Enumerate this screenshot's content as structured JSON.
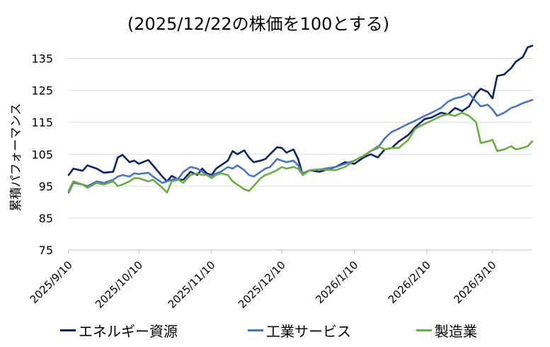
{
  "chart_data": {
    "type": "line",
    "title": "(2025/12/22の株価を100とする)",
    "ylabel": "累積パフォーマンス",
    "xlabel": "",
    "ylim": [
      75,
      140
    ],
    "yticks": [
      75,
      85,
      95,
      105,
      115,
      125,
      135
    ],
    "xticks": [
      "2025/9/10",
      "2025/10/10",
      "2025/11/10",
      "2025/12/10",
      "2026/1/10",
      "2026/2/10",
      "2026/3/10"
    ],
    "grid": "horizontal",
    "legend_position": "bottom",
    "series": [
      {
        "name": "エネルギー資源",
        "color": "#0d2463",
        "points": [
          [
            "2025-09-10",
            98.5
          ],
          [
            "2025-09-12",
            100.5
          ],
          [
            "2025-09-16",
            99.8
          ],
          [
            "2025-09-18",
            101.5
          ],
          [
            "2025-09-22",
            100.5
          ],
          [
            "2025-09-25",
            99.2
          ],
          [
            "2025-09-29",
            99.5
          ],
          [
            "2025-10-01",
            104.0
          ],
          [
            "2025-10-03",
            104.8
          ],
          [
            "2025-10-06",
            102.5
          ],
          [
            "2025-10-08",
            103.0
          ],
          [
            "2025-10-10",
            102.0
          ],
          [
            "2025-10-14",
            103.2
          ],
          [
            "2025-10-16",
            101.5
          ],
          [
            "2025-10-20",
            98.0
          ],
          [
            "2025-10-22",
            96.5
          ],
          [
            "2025-10-24",
            98.2
          ],
          [
            "2025-10-27",
            97.0
          ],
          [
            "2025-10-29",
            97.0
          ],
          [
            "2025-11-01",
            99.5
          ],
          [
            "2025-11-04",
            98.5
          ],
          [
            "2025-11-06",
            100.5
          ],
          [
            "2025-11-08",
            99.0
          ],
          [
            "2025-11-10",
            98.5
          ],
          [
            "2025-11-12",
            100.5
          ],
          [
            "2025-11-14",
            101.5
          ],
          [
            "2025-11-17",
            103.0
          ],
          [
            "2025-11-19",
            106.0
          ],
          [
            "2025-11-21",
            105.0
          ],
          [
            "2025-11-24",
            106.2
          ],
          [
            "2025-11-26",
            104.0
          ],
          [
            "2025-11-28",
            102.5
          ],
          [
            "2025-12-01",
            103.0
          ],
          [
            "2025-12-03",
            103.5
          ],
          [
            "2025-12-05",
            105.0
          ],
          [
            "2025-12-08",
            107.2
          ],
          [
            "2025-12-10",
            107.0
          ],
          [
            "2025-12-12",
            105.5
          ],
          [
            "2025-12-15",
            106.5
          ],
          [
            "2025-12-17",
            103.5
          ],
          [
            "2025-12-19",
            98.5
          ],
          [
            "2025-12-22",
            100.0
          ],
          [
            "2025-12-26",
            99.5
          ],
          [
            "2026-01-02",
            101.0
          ],
          [
            "2026-01-06",
            102.5
          ],
          [
            "2026-01-10",
            102.0
          ],
          [
            "2026-01-14",
            104.0
          ],
          [
            "2026-01-17",
            105.0
          ],
          [
            "2026-01-20",
            104.0
          ],
          [
            "2026-01-23",
            106.5
          ],
          [
            "2026-01-26",
            107.0
          ],
          [
            "2026-01-29",
            109.0
          ],
          [
            "2026-02-02",
            111.0
          ],
          [
            "2026-02-05",
            113.5
          ],
          [
            "2026-02-09",
            116.0
          ],
          [
            "2026-02-12",
            116.5
          ],
          [
            "2026-02-16",
            118.0
          ],
          [
            "2026-02-19",
            117.5
          ],
          [
            "2026-02-22",
            119.5
          ],
          [
            "2026-02-25",
            118.5
          ],
          [
            "2026-02-28",
            120.0
          ],
          [
            "2026-03-03",
            124.0
          ],
          [
            "2026-03-05",
            125.5
          ],
          [
            "2026-03-08",
            124.5
          ],
          [
            "2026-03-10",
            122.5
          ],
          [
            "2026-03-12",
            129.5
          ],
          [
            "2026-03-15",
            130.0
          ],
          [
            "2026-03-18",
            132.0
          ],
          [
            "2026-03-20",
            134.0
          ],
          [
            "2026-03-23",
            135.5
          ],
          [
            "2026-03-25",
            138.5
          ],
          [
            "2026-03-27",
            139.0
          ]
        ]
      },
      {
        "name": "工業サービス",
        "color": "#4a74c4",
        "points": [
          [
            "2025-09-10",
            93.0
          ],
          [
            "2025-09-12",
            96.0
          ],
          [
            "2025-09-16",
            95.5
          ],
          [
            "2025-09-18",
            95.0
          ],
          [
            "2025-09-22",
            96.5
          ],
          [
            "2025-09-25",
            96.0
          ],
          [
            "2025-09-29",
            97.0
          ],
          [
            "2025-10-01",
            98.0
          ],
          [
            "2025-10-03",
            98.5
          ],
          [
            "2025-10-06",
            98.0
          ],
          [
            "2025-10-08",
            99.0
          ],
          [
            "2025-10-10",
            98.8
          ],
          [
            "2025-10-14",
            99.2
          ],
          [
            "2025-10-16",
            98.0
          ],
          [
            "2025-10-20",
            96.0
          ],
          [
            "2025-10-22",
            96.5
          ],
          [
            "2025-10-24",
            97.0
          ],
          [
            "2025-10-27",
            97.5
          ],
          [
            "2025-10-29",
            99.5
          ],
          [
            "2025-11-01",
            101.0
          ],
          [
            "2025-11-04",
            100.5
          ],
          [
            "2025-11-06",
            99.5
          ],
          [
            "2025-11-08",
            98.5
          ],
          [
            "2025-11-10",
            98.2
          ],
          [
            "2025-11-12",
            99.0
          ],
          [
            "2025-11-14",
            99.5
          ],
          [
            "2025-11-17",
            101.0
          ],
          [
            "2025-11-19",
            100.5
          ],
          [
            "2025-11-21",
            101.5
          ],
          [
            "2025-11-24",
            100.0
          ],
          [
            "2025-11-26",
            98.5
          ],
          [
            "2025-11-28",
            98.0
          ],
          [
            "2025-12-01",
            99.5
          ],
          [
            "2025-12-03",
            100.5
          ],
          [
            "2025-12-05",
            101.0
          ],
          [
            "2025-12-08",
            103.5
          ],
          [
            "2025-12-10",
            103.0
          ],
          [
            "2025-12-12",
            102.5
          ],
          [
            "2025-12-15",
            103.0
          ],
          [
            "2025-12-17",
            101.5
          ],
          [
            "2025-12-19",
            99.0
          ],
          [
            "2025-12-22",
            100.0
          ],
          [
            "2025-12-26",
            100.2
          ],
          [
            "2026-01-02",
            101.0
          ],
          [
            "2026-01-06",
            102.0
          ],
          [
            "2026-01-10",
            103.0
          ],
          [
            "2026-01-14",
            104.5
          ],
          [
            "2026-01-17",
            106.0
          ],
          [
            "2026-01-20",
            107.0
          ],
          [
            "2026-01-23",
            110.0
          ],
          [
            "2026-01-26",
            112.0
          ],
          [
            "2026-01-29",
            113.0
          ],
          [
            "2026-02-02",
            114.5
          ],
          [
            "2026-02-05",
            115.5
          ],
          [
            "2026-02-09",
            117.0
          ],
          [
            "2026-02-12",
            118.0
          ],
          [
            "2026-02-16",
            119.5
          ],
          [
            "2026-02-19",
            121.5
          ],
          [
            "2026-02-22",
            122.5
          ],
          [
            "2026-02-25",
            123.0
          ],
          [
            "2026-02-28",
            124.0
          ],
          [
            "2026-03-03",
            121.5
          ],
          [
            "2026-03-05",
            120.0
          ],
          [
            "2026-03-08",
            120.5
          ],
          [
            "2026-03-10",
            119.0
          ],
          [
            "2026-03-12",
            117.0
          ],
          [
            "2026-03-15",
            118.0
          ],
          [
            "2026-03-18",
            119.5
          ],
          [
            "2026-03-20",
            120.0
          ],
          [
            "2026-03-23",
            121.0
          ],
          [
            "2026-03-25",
            121.5
          ],
          [
            "2026-03-27",
            122.0
          ]
        ]
      },
      {
        "name": "製造業",
        "color": "#6aad45",
        "points": [
          [
            "2025-09-10",
            93.5
          ],
          [
            "2025-09-12",
            96.5
          ],
          [
            "2025-09-16",
            95.5
          ],
          [
            "2025-09-18",
            94.5
          ],
          [
            "2025-09-22",
            96.0
          ],
          [
            "2025-09-25",
            95.5
          ],
          [
            "2025-09-29",
            96.5
          ],
          [
            "2025-10-01",
            95.0
          ],
          [
            "2025-10-03",
            95.5
          ],
          [
            "2025-10-06",
            96.5
          ],
          [
            "2025-10-08",
            97.5
          ],
          [
            "2025-10-10",
            97.5
          ],
          [
            "2025-10-14",
            96.5
          ],
          [
            "2025-10-16",
            97.0
          ],
          [
            "2025-10-20",
            94.5
          ],
          [
            "2025-10-22",
            93.0
          ],
          [
            "2025-10-24",
            96.5
          ],
          [
            "2025-10-27",
            97.0
          ],
          [
            "2025-10-29",
            96.0
          ],
          [
            "2025-11-01",
            98.5
          ],
          [
            "2025-11-04",
            99.0
          ],
          [
            "2025-11-06",
            98.5
          ],
          [
            "2025-11-08",
            98.5
          ],
          [
            "2025-11-10",
            97.5
          ],
          [
            "2025-11-12",
            98.5
          ],
          [
            "2025-11-14",
            99.0
          ],
          [
            "2025-11-17",
            98.5
          ],
          [
            "2025-11-19",
            96.5
          ],
          [
            "2025-11-21",
            95.5
          ],
          [
            "2025-11-24",
            94.0
          ],
          [
            "2025-11-26",
            93.5
          ],
          [
            "2025-11-28",
            95.0
          ],
          [
            "2025-12-01",
            97.5
          ],
          [
            "2025-12-03",
            98.5
          ],
          [
            "2025-12-05",
            99.0
          ],
          [
            "2025-12-08",
            100.0
          ],
          [
            "2025-12-10",
            101.0
          ],
          [
            "2025-12-12",
            100.5
          ],
          [
            "2025-12-15",
            101.0
          ],
          [
            "2025-12-17",
            100.5
          ],
          [
            "2025-12-19",
            98.5
          ],
          [
            "2025-12-22",
            100.0
          ],
          [
            "2025-12-26",
            100.3
          ],
          [
            "2026-01-02",
            100.0
          ],
          [
            "2026-01-06",
            101.0
          ],
          [
            "2026-01-10",
            103.0
          ],
          [
            "2026-01-14",
            104.5
          ],
          [
            "2026-01-17",
            106.0
          ],
          [
            "2026-01-20",
            107.5
          ],
          [
            "2026-01-23",
            106.5
          ],
          [
            "2026-01-26",
            107.0
          ],
          [
            "2026-01-29",
            107.0
          ],
          [
            "2026-02-02",
            109.5
          ],
          [
            "2026-02-05",
            113.0
          ],
          [
            "2026-02-09",
            114.5
          ],
          [
            "2026-02-12",
            115.5
          ],
          [
            "2026-02-16",
            117.0
          ],
          [
            "2026-02-19",
            117.5
          ],
          [
            "2026-02-22",
            117.0
          ],
          [
            "2026-02-25",
            118.0
          ],
          [
            "2026-02-28",
            117.0
          ],
          [
            "2026-03-03",
            115.0
          ],
          [
            "2026-03-05",
            108.5
          ],
          [
            "2026-03-08",
            109.0
          ],
          [
            "2026-03-10",
            109.5
          ],
          [
            "2026-03-12",
            106.0
          ],
          [
            "2026-03-15",
            106.5
          ],
          [
            "2026-03-18",
            107.5
          ],
          [
            "2026-03-20",
            106.5
          ],
          [
            "2026-03-23",
            107.0
          ],
          [
            "2026-03-25",
            107.5
          ],
          [
            "2026-03-27",
            109.0
          ]
        ]
      }
    ]
  }
}
